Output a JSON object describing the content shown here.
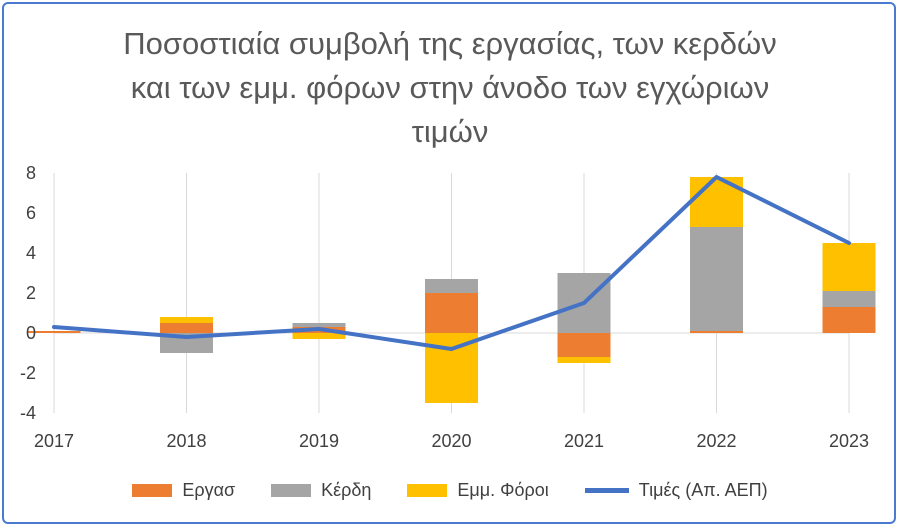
{
  "chart_data": {
    "type": "bar",
    "title_lines": [
      "Ποσοστιαία συμβολή της εργασίας, των κερδών",
      "και των εμμ. φόρων στην άνοδο των εγχώριων",
      "τιμών"
    ],
    "categories": [
      "2017",
      "2018",
      "2019",
      "2020",
      "2021",
      "2022",
      "2023"
    ],
    "ylim": [
      -4,
      8
    ],
    "yticks": [
      "8",
      "6",
      "4",
      "2",
      "0",
      "-2",
      "-4"
    ],
    "ytick_values": [
      8,
      6,
      4,
      2,
      0,
      -2,
      -4
    ],
    "series": [
      {
        "name": "Εργασ",
        "kind": "bar",
        "color": "#ed7d31",
        "values": [
          0.1,
          0.5,
          0.3,
          2.0,
          -1.2,
          0.1,
          1.3
        ]
      },
      {
        "name": "Κέρδη",
        "kind": "bar",
        "color": "#a5a5a5",
        "values": [
          0.0,
          -1.0,
          0.2,
          0.7,
          3.0,
          5.2,
          0.8
        ]
      },
      {
        "name": "Εμμ. Φόροι",
        "kind": "bar",
        "color": "#ffc000",
        "values": [
          0.0,
          0.3,
          -0.3,
          -3.5,
          -0.3,
          2.5,
          2.4
        ]
      },
      {
        "name": "Τιμές (Απ. ΑΕΠ)",
        "kind": "line",
        "color": "#4472c4",
        "values": [
          0.3,
          -0.2,
          0.2,
          -0.8,
          1.5,
          7.8,
          4.5
        ]
      }
    ]
  }
}
